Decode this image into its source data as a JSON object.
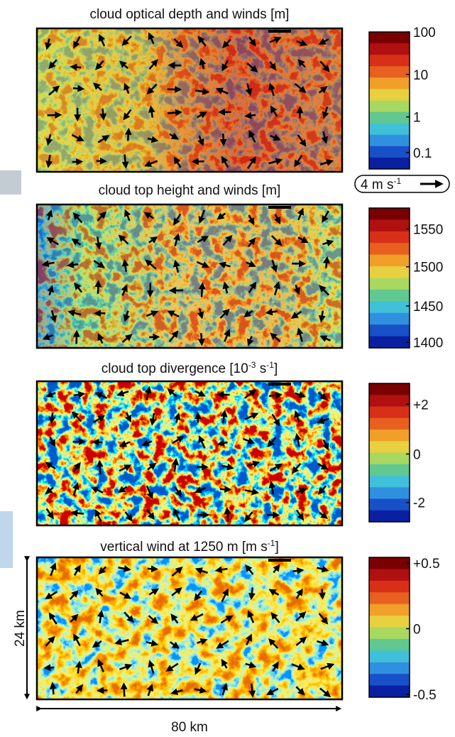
{
  "panels": [
    {
      "title": [
        "cloud optical depth and winds [m]"
      ],
      "colorbar_ticks": [
        "100",
        "10",
        "1",
        "0.1"
      ]
    },
    {
      "title": [
        "cloud top height and winds [m]"
      ],
      "colorbar_ticks": [
        "1550",
        "1500",
        "1450",
        "1400"
      ]
    },
    {
      "title": [
        "cloud top divergence [10",
        "-3",
        " s",
        "-1",
        "]"
      ],
      "colorbar_ticks": [
        "+2",
        "0",
        "-2"
      ]
    },
    {
      "title": [
        "vertical wind at 1250 m [m s",
        "-1",
        "]"
      ],
      "colorbar_ticks": [
        "+0.5",
        "0",
        "-0.5"
      ]
    }
  ],
  "wind_scale": [
    "4 m s",
    "-1"
  ],
  "y_extent": "24 km",
  "x_extent": "80 km"
}
